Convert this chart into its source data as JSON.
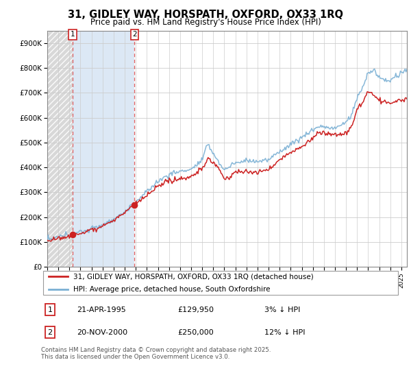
{
  "title_line1": "31, GIDLEY WAY, HORSPATH, OXFORD, OX33 1RQ",
  "title_line2": "Price paid vs. HM Land Registry's House Price Index (HPI)",
  "ylim": [
    0,
    950000
  ],
  "yticks": [
    0,
    100000,
    200000,
    300000,
    400000,
    500000,
    600000,
    700000,
    800000,
    900000
  ],
  "ytick_labels": [
    "£0",
    "£100K",
    "£200K",
    "£300K",
    "£400K",
    "£500K",
    "£600K",
    "£700K",
    "£800K",
    "£900K"
  ],
  "legend_label_red": "31, GIDLEY WAY, HORSPATH, OXFORD, OX33 1RQ (detached house)",
  "legend_label_blue": "HPI: Average price, detached house, South Oxfordshire",
  "annotation1_date": "21-APR-1995",
  "annotation1_price": "£129,950",
  "annotation1_hpi": "3% ↓ HPI",
  "annotation2_date": "20-NOV-2000",
  "annotation2_price": "£250,000",
  "annotation2_hpi": "12% ↓ HPI",
  "footer": "Contains HM Land Registry data © Crown copyright and database right 2025.\nThis data is licensed under the Open Government Licence v3.0.",
  "sale1_x": 1995.31,
  "sale1_y": 129950,
  "sale2_x": 2000.89,
  "sale2_y": 250000,
  "xmin": 1993.0,
  "xmax": 2025.5,
  "red_color": "#cc2222",
  "blue_color": "#7ab0d4",
  "vline_color": "#dd4444",
  "hatch_color": "#cccccc",
  "region1_color": "#d8d8d8",
  "region2_color": "#dce8f5"
}
